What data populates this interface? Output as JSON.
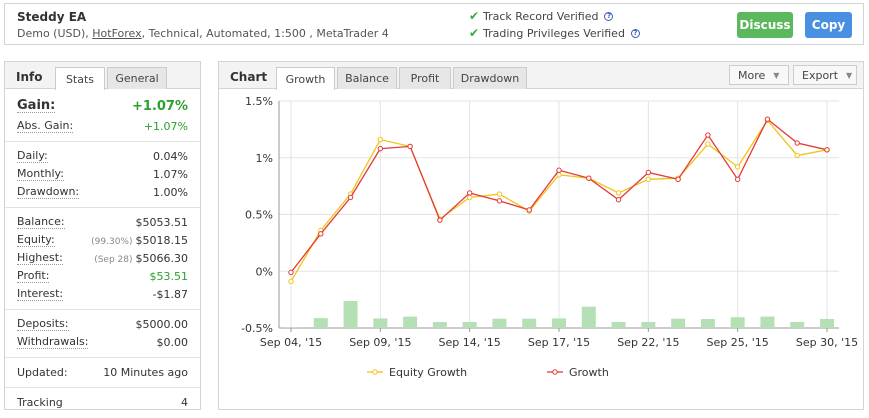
{
  "header": {
    "title": "Steddy EA",
    "subtitle_prefix": "Demo (USD), ",
    "broker_link": "HotForex",
    "subtitle_suffix": ", Technical, Automated, 1:500 , MetaTrader 4",
    "verified_track": "Track Record Verified",
    "verified_privileges": "Trading Privileges Verified",
    "discuss_label": "Discuss",
    "copy_label": "Copy"
  },
  "left_tabs": {
    "title": "Info",
    "stats": "Stats",
    "general": "General"
  },
  "stats": {
    "gain_label": "Gain:",
    "gain": "+1.07%",
    "abs_gain_label": "Abs. Gain:",
    "abs_gain": "+1.07%",
    "daily_label": "Daily:",
    "daily": "0.04%",
    "monthly_label": "Monthly:",
    "monthly": "1.07%",
    "drawdown_label": "Drawdown:",
    "drawdown": "1.00%",
    "balance_label": "Balance:",
    "balance": "$5053.51",
    "equity_label": "Equity:",
    "equity_pct": "(99.30%)",
    "equity": "$5018.15",
    "highest_label": "Highest:",
    "highest_date": "(Sep 28)",
    "highest": "$5066.30",
    "profit_label": "Profit:",
    "profit": "$53.51",
    "interest_label": "Interest:",
    "interest": "-$1.87",
    "deposits_label": "Deposits:",
    "deposits": "$5000.00",
    "withdrawals_label": "Withdrawals:",
    "withdrawals": "$0.00",
    "updated_label": "Updated:",
    "updated": "10 Minutes ago",
    "tracking_label": "Tracking",
    "tracking": "4"
  },
  "right_tabs": {
    "title": "Chart",
    "tabs": [
      "Growth",
      "Balance",
      "Profit",
      "Drawdown"
    ],
    "more": "More",
    "export": "Export"
  },
  "colors": {
    "equity": "#f0c419",
    "growth": "#e53935",
    "bars": "#b5e0b5",
    "green": "#2ca02c"
  },
  "chart_data": {
    "type": "line",
    "y_ticks": [
      "1.5%",
      "1%",
      "0.5%",
      "0%",
      "-0.5%"
    ],
    "ylim": [
      -0.5,
      1.5
    ],
    "x_ticks": [
      "Sep 04, '15",
      "Sep 09, '15",
      "Sep 14, '15",
      "Sep 17, '15",
      "Sep 22, '15",
      "Sep 25, '15",
      "Sep 30, '15"
    ],
    "x_tick_index": [
      0,
      3,
      6,
      9,
      12,
      15,
      18
    ],
    "grid": true,
    "legend_position": "bottom",
    "series": [
      {
        "name": "Equity Growth",
        "values": [
          -0.09,
          0.36,
          0.68,
          1.16,
          1.1,
          0.46,
          0.65,
          0.68,
          0.53,
          0.85,
          0.82,
          0.69,
          0.81,
          0.82,
          1.12,
          0.92,
          1.33,
          1.02,
          1.07
        ]
      },
      {
        "name": "Growth",
        "values": [
          -0.01,
          0.33,
          0.65,
          1.08,
          1.1,
          0.45,
          0.69,
          0.62,
          0.54,
          0.89,
          0.82,
          0.63,
          0.87,
          0.81,
          1.2,
          0.81,
          1.34,
          1.13,
          1.07
        ]
      }
    ],
    "bars": {
      "ylim": [
        0,
        1
      ],
      "values": [
        0.03,
        0.33,
        0.9,
        0.32,
        0.38,
        0.2,
        0.2,
        0.31,
        0.31,
        0.32,
        0.71,
        0.2,
        0.2,
        0.31,
        0.3,
        0.36,
        0.38,
        0.2,
        0.3
      ]
    }
  }
}
